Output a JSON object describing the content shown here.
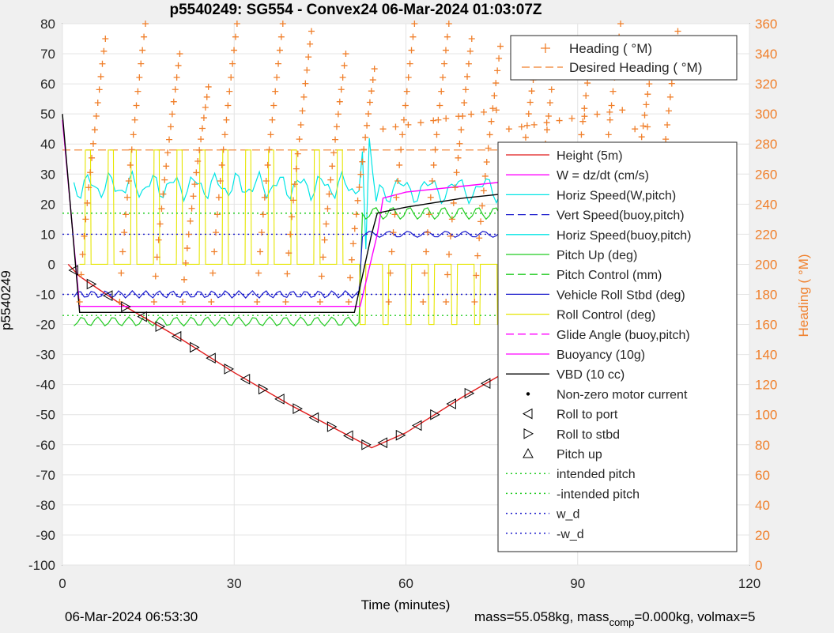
{
  "chart_data": {
    "type": "line",
    "title": "p5540249: SG554 - Convex24 06-Mar-2024 01:03:07Z",
    "xlabel": "Time (minutes)",
    "ylabel": "p5540249",
    "ylabel_right": "Heading (  °M)",
    "xlim": [
      0,
      120
    ],
    "ylim": [
      -100,
      80
    ],
    "ylim_right": [
      0,
      360
    ],
    "x_ticks": [
      "0",
      "30",
      "60",
      "90",
      "120"
    ],
    "y_ticks": [
      "80",
      "70",
      "60",
      "50",
      "40",
      "30",
      "20",
      "10",
      "0",
      "-10",
      "-20",
      "-30",
      "-40",
      "-50",
      "-60",
      "-70",
      "-80",
      "-90",
      "-100"
    ],
    "y_ticks_right": [
      "360",
      "340",
      "320",
      "300",
      "280",
      "260",
      "240",
      "220",
      "200",
      "180",
      "160",
      "140",
      "120",
      "100",
      "80",
      "60",
      "40",
      "20",
      "0"
    ],
    "grid": true,
    "legend_top": {
      "placement": "top-right",
      "entries": [
        "Heading (  °M)",
        "Desired Heading (    °M)"
      ]
    },
    "legend_main": {
      "placement": "right",
      "entries": [
        "Height (5m)",
        "W = dz/dt (cm/s)",
        "Horiz Speed(W,pitch)",
        "Vert Speed(buoy,pitch)",
        "Horiz Speed(buoy,pitch)",
        "Pitch Up (deg)",
        "Pitch Control (mm)",
        "Vehicle Roll Stbd (deg)",
        "Roll Control (deg)",
        "Glide Angle (buoy,pitch)",
        "Buoyancy (10g)",
        "VBD (10 cc)",
        "Non-zero motor current",
        "Roll to port",
        "Roll to stbd",
        "Pitch up",
        "intended pitch",
        "-intended pitch",
        "w_d",
        "-w_d"
      ]
    },
    "series": [
      {
        "name": "Height (5m)",
        "x": [
          1,
          3,
          10,
          20,
          30,
          40,
          50,
          54,
          60,
          70,
          80,
          90,
          100,
          105
        ],
        "y": [
          0,
          -4,
          -13,
          -24,
          -36,
          -47,
          -57,
          -61,
          -56,
          -44,
          -33,
          -21,
          -8,
          0
        ]
      },
      {
        "name": "Buoyancy (10g)",
        "x": [
          0,
          3,
          3.5,
          52,
          55,
          56,
          60,
          70,
          80,
          90,
          100,
          105
        ],
        "y": [
          48,
          -14,
          -14,
          -14,
          10,
          22,
          24,
          26,
          28,
          30,
          33,
          33
        ]
      },
      {
        "name": "VBD (10 cc)",
        "x": [
          0,
          3,
          3.5,
          51,
          54,
          55,
          60,
          70,
          80,
          90,
          100,
          105
        ],
        "y": [
          50,
          -16,
          -16,
          -16,
          10,
          17,
          19,
          22,
          24,
          27,
          29,
          29
        ]
      },
      {
        "name": "intended pitch",
        "x": [
          0,
          105
        ],
        "y": [
          17,
          17
        ]
      },
      {
        "name": "-intended pitch",
        "x": [
          0,
          105
        ],
        "y": [
          -17,
          -17
        ]
      },
      {
        "name": "w_d",
        "x": [
          0,
          105
        ],
        "y": [
          10,
          10
        ]
      },
      {
        "name": "-w_d",
        "x": [
          0,
          105
        ],
        "y": [
          -10,
          -10
        ]
      },
      {
        "name": "Desired Heading (    °M)",
        "x": [
          0,
          105
        ],
        "y": [
          276,
          276
        ]
      }
    ],
    "colors": {
      "heading": "#f07f2a",
      "height": "#e01b1b",
      "w": "#ff00ff",
      "horiz_speed": "#00e5e5",
      "vert_speed": "#1a1acc",
      "pitch_up": "#22cc22",
      "roll": "#e6e600",
      "vbd": "#000000"
    }
  },
  "footer": {
    "timestamp": "06-Mar-2024 06:53:30",
    "mass_text": "mass=55.058kg, mass",
    "mass_sub": "comp",
    "mass_tail": "=0.000kg, volmax=5"
  }
}
